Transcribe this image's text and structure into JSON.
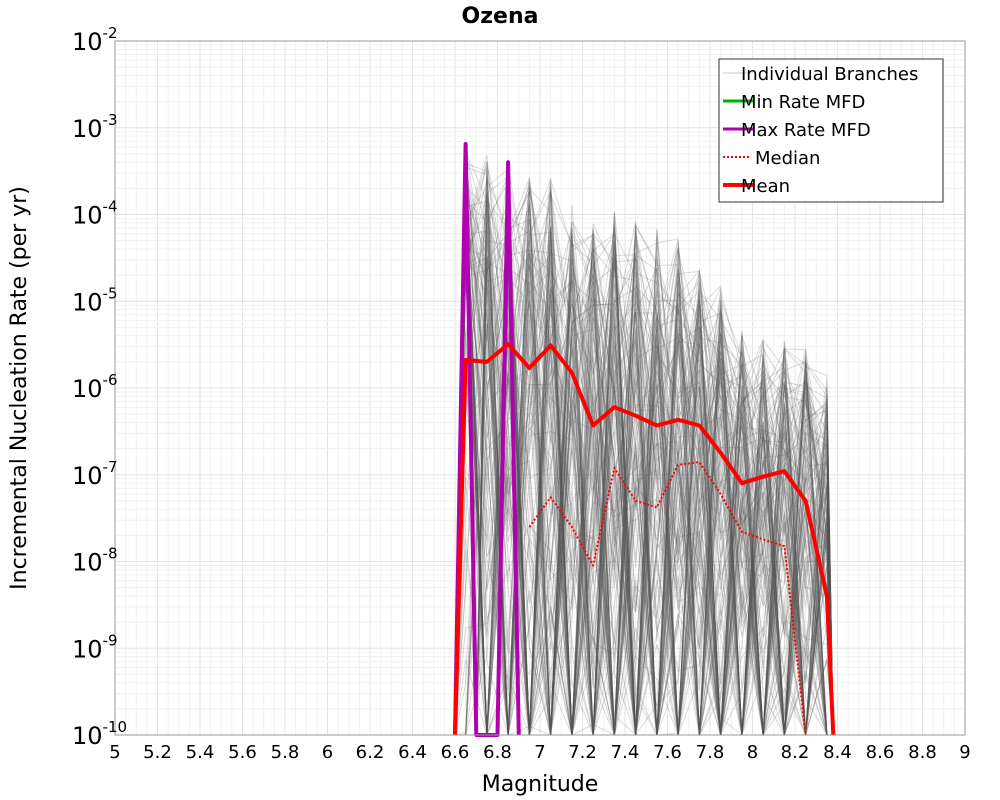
{
  "chart_data": {
    "type": "line",
    "title": "Ozena",
    "xlabel": "Magnitude",
    "ylabel": "Incremental Nucleation Rate (per yr)",
    "xlim": [
      5,
      9
    ],
    "ylim": [
      1e-10,
      0.01
    ],
    "y_scale": "log",
    "grid": true,
    "legend_position": "top-right",
    "x_ticks": [
      "5",
      "5.2",
      "5.4",
      "5.6",
      "5.8",
      "6",
      "6.2",
      "6.4",
      "6.6",
      "6.8",
      "7",
      "7.2",
      "7.4",
      "7.6",
      "7.8",
      "8",
      "8.2",
      "8.4",
      "8.6",
      "8.8",
      "9"
    ],
    "y_ticks": [
      {
        "base": "10",
        "exp": "-10",
        "value": 1e-10
      },
      {
        "base": "10",
        "exp": "-9",
        "value": 1e-09
      },
      {
        "base": "10",
        "exp": "-8",
        "value": 1e-08
      },
      {
        "base": "10",
        "exp": "-7",
        "value": 1e-07
      },
      {
        "base": "10",
        "exp": "-6",
        "value": 1e-06
      },
      {
        "base": "10",
        "exp": "-5",
        "value": 1e-05
      },
      {
        "base": "10",
        "exp": "-4",
        "value": 0.0001
      },
      {
        "base": "10",
        "exp": "-3",
        "value": 0.001
      },
      {
        "base": "10",
        "exp": "-2",
        "value": 0.01
      }
    ],
    "legend": [
      {
        "label": "Individual Branches",
        "color": "#c8c8c8",
        "style": "thin"
      },
      {
        "label": "Min Rate MFD",
        "color": "#00b000",
        "style": "solid"
      },
      {
        "label": "Max Rate MFD",
        "color": "#b000b0",
        "style": "solid"
      },
      {
        "label": "Median",
        "color": "#ff0000",
        "style": "dotted"
      },
      {
        "label": "Mean",
        "color": "#ff0000",
        "style": "thick"
      }
    ],
    "branches": {
      "color": "#555555",
      "peak_envelope": [
        {
          "x": 6.65,
          "y": 0.0006
        },
        {
          "x": 6.75,
          "y": 0.0005
        },
        {
          "x": 6.85,
          "y": 0.0004
        },
        {
          "x": 6.95,
          "y": 0.00033
        },
        {
          "x": 7.05,
          "y": 0.00028
        },
        {
          "x": 7.15,
          "y": 0.00014
        },
        {
          "x": 7.25,
          "y": 9e-05
        },
        {
          "x": 7.35,
          "y": 0.00012
        },
        {
          "x": 7.45,
          "y": 9e-05
        },
        {
          "x": 7.55,
          "y": 7e-05
        },
        {
          "x": 7.65,
          "y": 6e-05
        },
        {
          "x": 7.75,
          "y": 2.5e-05
        },
        {
          "x": 7.85,
          "y": 1.5e-05
        },
        {
          "x": 7.95,
          "y": 5e-06
        },
        {
          "x": 8.05,
          "y": 4e-06
        },
        {
          "x": 8.15,
          "y": 4e-06
        },
        {
          "x": 8.25,
          "y": 3e-06
        },
        {
          "x": 8.35,
          "y": 1.5e-06
        }
      ]
    },
    "series": [
      {
        "name": "Max Rate MFD",
        "color": "#b000b0",
        "points": [
          {
            "x": 6.6,
            "y": 1e-10
          },
          {
            "x": 6.65,
            "y": 0.00065
          },
          {
            "x": 6.7,
            "y": 1e-10
          },
          {
            "x": 6.8,
            "y": 1e-10
          },
          {
            "x": 6.85,
            "y": 0.0004
          },
          {
            "x": 6.9,
            "y": 1e-10
          }
        ]
      },
      {
        "name": "Median",
        "color": "#ff0000",
        "points": [
          {
            "x": 6.95,
            "y": 2.5e-08
          },
          {
            "x": 7.05,
            "y": 5.5e-08
          },
          {
            "x": 7.15,
            "y": 2.5e-08
          },
          {
            "x": 7.25,
            "y": 9e-09
          },
          {
            "x": 7.35,
            "y": 1.2e-07
          },
          {
            "x": 7.45,
            "y": 5e-08
          },
          {
            "x": 7.55,
            "y": 4.2e-08
          },
          {
            "x": 7.65,
            "y": 1.3e-07
          },
          {
            "x": 7.75,
            "y": 1.4e-07
          },
          {
            "x": 7.85,
            "y": 6e-08
          },
          {
            "x": 7.95,
            "y": 2.2e-08
          },
          {
            "x": 8.05,
            "y": 1.8e-08
          },
          {
            "x": 8.15,
            "y": 1.5e-08
          },
          {
            "x": 8.25,
            "y": 1e-10
          }
        ]
      },
      {
        "name": "Mean",
        "color": "#ff0000",
        "points": [
          {
            "x": 6.6,
            "y": 1e-10
          },
          {
            "x": 6.65,
            "y": 2.1e-06
          },
          {
            "x": 6.75,
            "y": 2e-06
          },
          {
            "x": 6.85,
            "y": 3.2e-06
          },
          {
            "x": 6.95,
            "y": 1.7e-06
          },
          {
            "x": 7.05,
            "y": 3.1e-06
          },
          {
            "x": 7.15,
            "y": 1.5e-06
          },
          {
            "x": 7.25,
            "y": 3.7e-07
          },
          {
            "x": 7.35,
            "y": 6e-07
          },
          {
            "x": 7.45,
            "y": 4.8e-07
          },
          {
            "x": 7.55,
            "y": 3.7e-07
          },
          {
            "x": 7.65,
            "y": 4.3e-07
          },
          {
            "x": 7.75,
            "y": 3.7e-07
          },
          {
            "x": 7.85,
            "y": 1.8e-07
          },
          {
            "x": 7.95,
            "y": 8e-08
          },
          {
            "x": 8.05,
            "y": 9.5e-08
          },
          {
            "x": 8.15,
            "y": 1.1e-07
          },
          {
            "x": 8.25,
            "y": 5e-08
          },
          {
            "x": 8.35,
            "y": 4e-09
          },
          {
            "x": 8.38,
            "y": 1e-10
          }
        ]
      }
    ]
  }
}
